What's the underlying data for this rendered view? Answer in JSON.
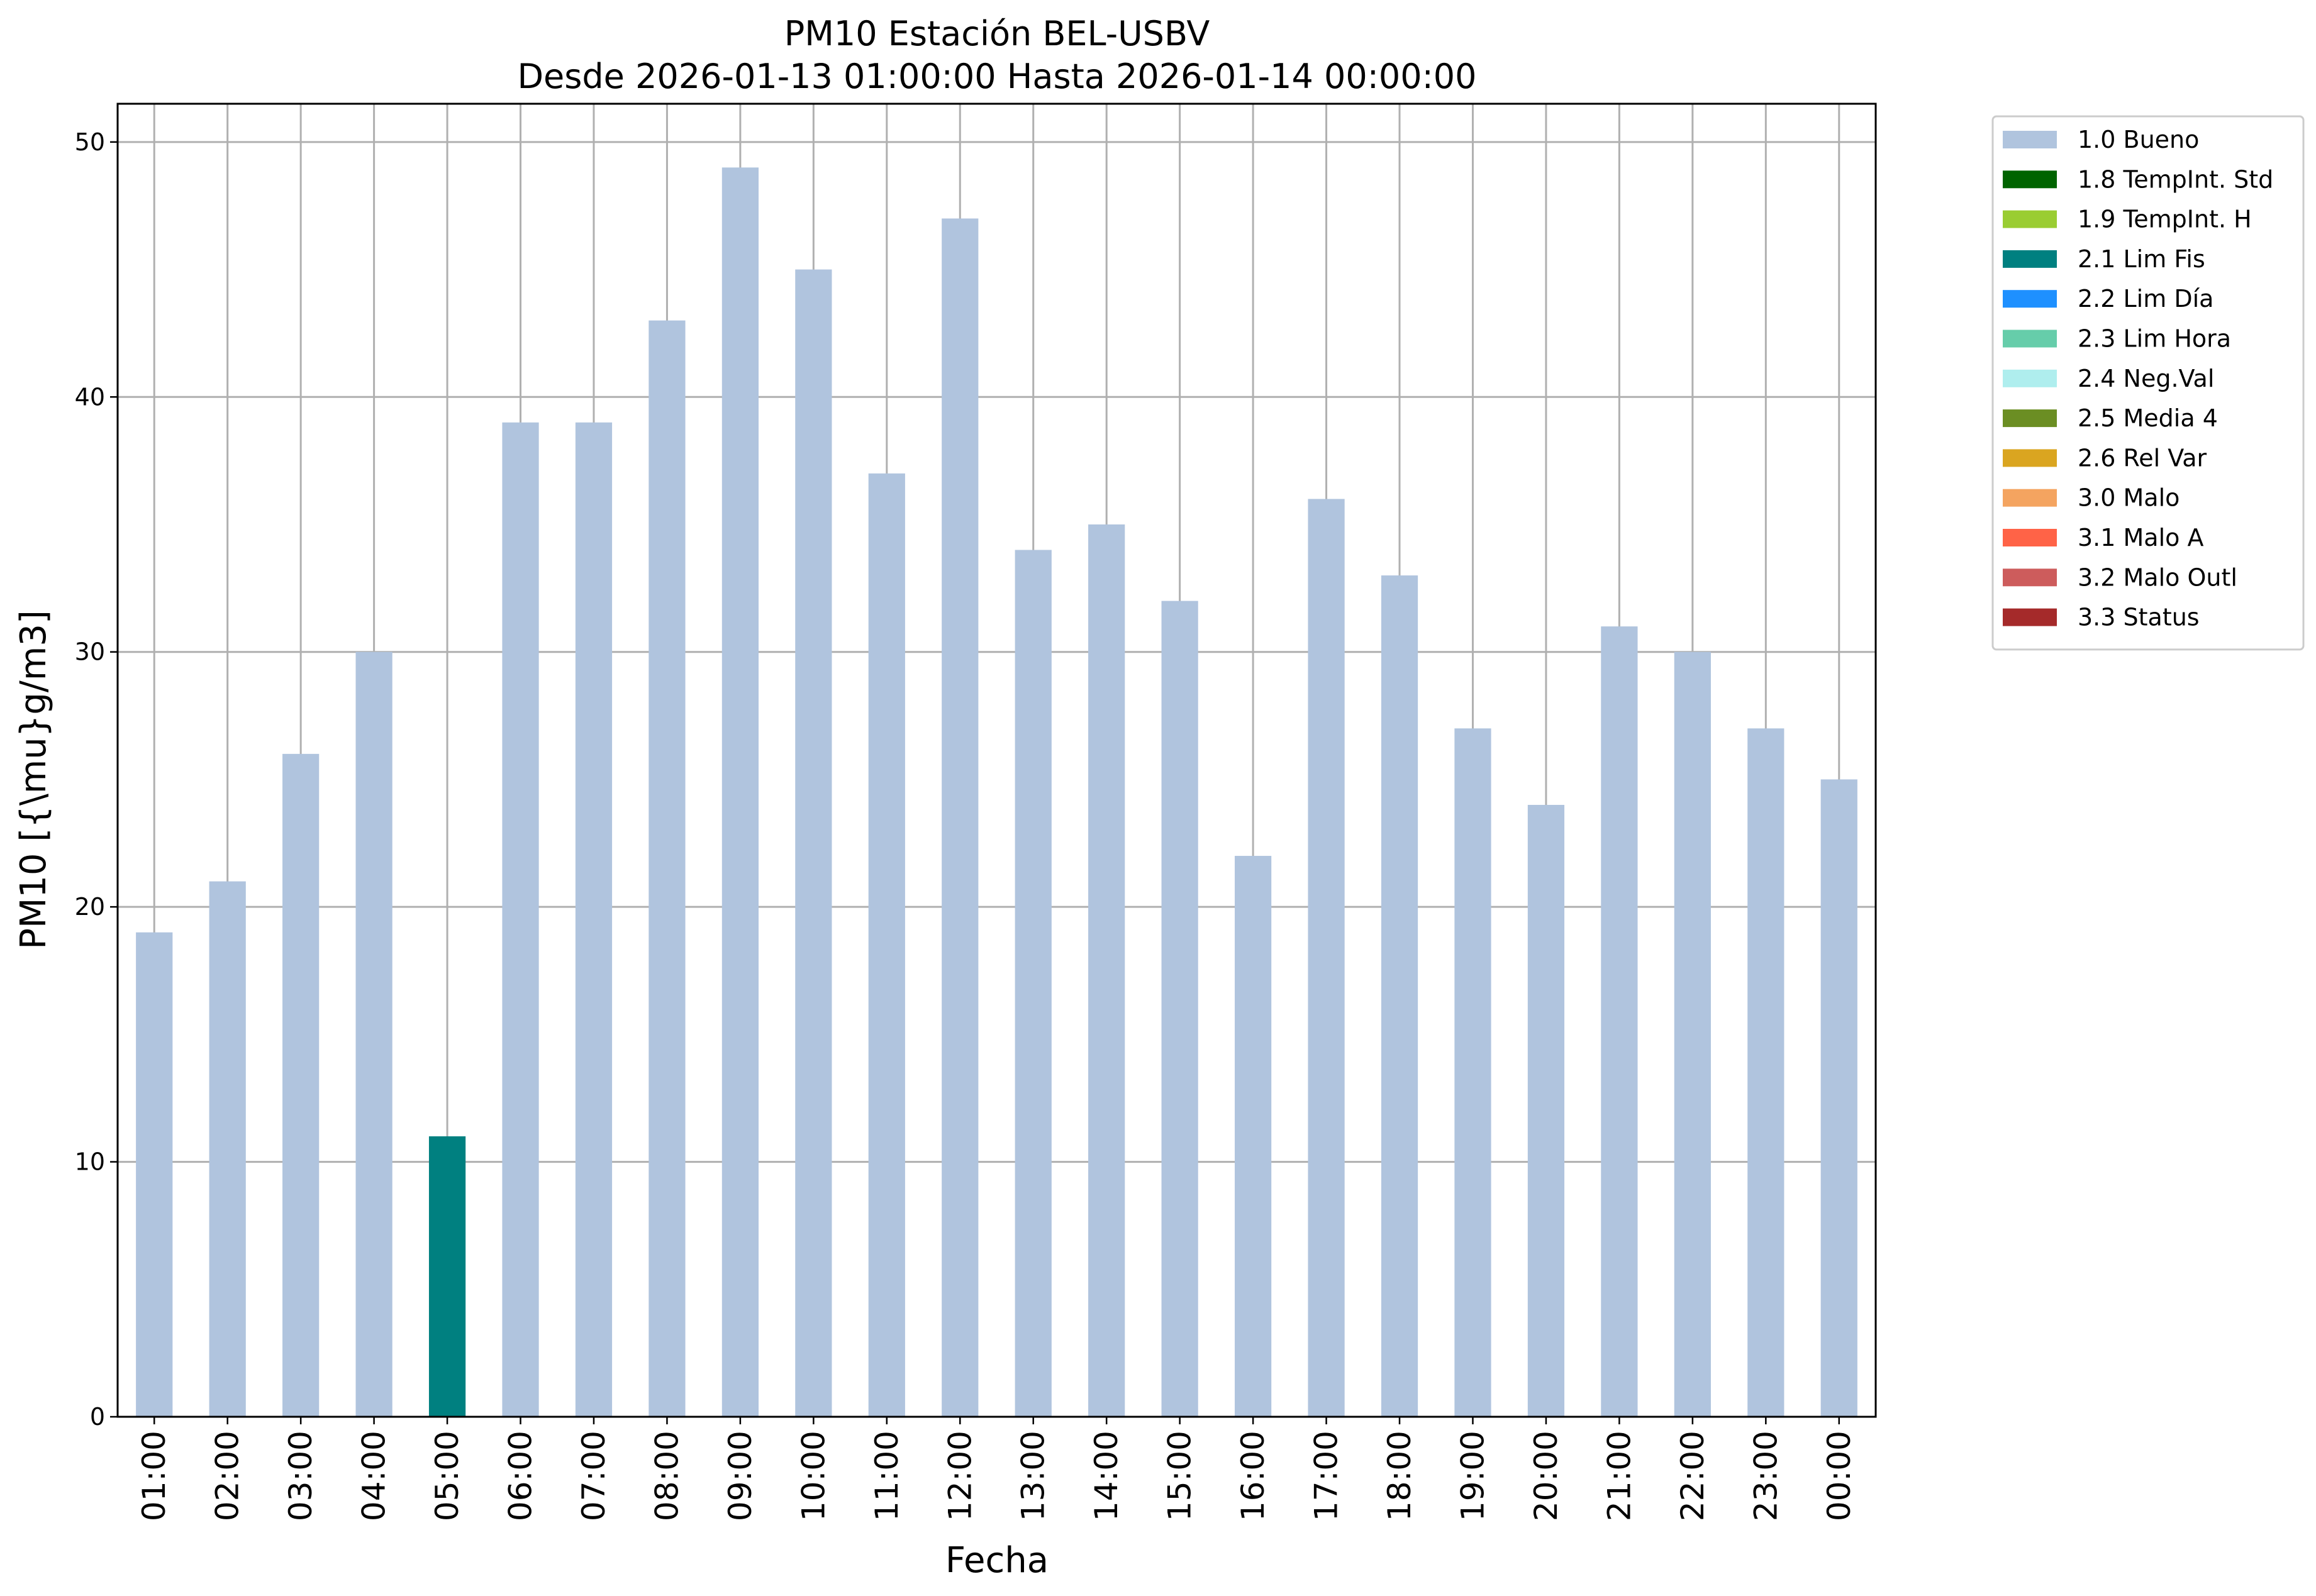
{
  "chart_data": {
    "type": "bar",
    "title": "PM10 Estación BEL-USBV",
    "subtitle": "Desde 2026-01-13 01:00:00 Hasta 2026-01-14 00:00:00",
    "xlabel": "Fecha",
    "ylabel": "PM10 [{\\mu}g/m3]",
    "ylim": [
      0,
      51.5
    ],
    "yticks": [
      0,
      10,
      20,
      30,
      40,
      50
    ],
    "grid": true,
    "legend_position": "outside-top-right",
    "categories": [
      "01:00",
      "02:00",
      "03:00",
      "04:00",
      "05:00",
      "06:00",
      "07:00",
      "08:00",
      "09:00",
      "10:00",
      "11:00",
      "12:00",
      "13:00",
      "14:00",
      "15:00",
      "16:00",
      "17:00",
      "18:00",
      "19:00",
      "20:00",
      "21:00",
      "22:00",
      "23:00",
      "00:00"
    ],
    "values": [
      19,
      21,
      26,
      30,
      11,
      39,
      39,
      43,
      49,
      45,
      37,
      47,
      34,
      35,
      32,
      22,
      36,
      33,
      27,
      24,
      31,
      30,
      27,
      25
    ],
    "flags": [
      "1.0 Bueno",
      "1.0 Bueno",
      "1.0 Bueno",
      "1.0 Bueno",
      "2.1 Lim Fis",
      "1.0 Bueno",
      "1.0 Bueno",
      "1.0 Bueno",
      "1.0 Bueno",
      "1.0 Bueno",
      "1.0 Bueno",
      "1.0 Bueno",
      "1.0 Bueno",
      "1.0 Bueno",
      "1.0 Bueno",
      "1.0 Bueno",
      "1.0 Bueno",
      "1.0 Bueno",
      "1.0 Bueno",
      "1.0 Bueno",
      "1.0 Bueno",
      "1.0 Bueno",
      "1.0 Bueno",
      "1.0 Bueno"
    ],
    "legend": [
      {
        "name": "1.0 Bueno",
        "color": "#b0c4de"
      },
      {
        "name": "1.8 TempInt. Std",
        "color": "#006400"
      },
      {
        "name": "1.9 TempInt. H",
        "color": "#9acd32"
      },
      {
        "name": "2.1 Lim Fis",
        "color": "#008080"
      },
      {
        "name": "2.2 Lim Día",
        "color": "#1e90ff"
      },
      {
        "name": "2.3 Lim Hora",
        "color": "#66cdaa"
      },
      {
        "name": "2.4 Neg.Val",
        "color": "#afeeee"
      },
      {
        "name": "2.5 Media 4",
        "color": "#6b8e23"
      },
      {
        "name": "2.6 Rel Var",
        "color": "#daa520"
      },
      {
        "name": "3.0 Malo",
        "color": "#f4a460"
      },
      {
        "name": "3.1 Malo A",
        "color": "#ff6347"
      },
      {
        "name": "3.2 Malo Outl",
        "color": "#cd5c5c"
      },
      {
        "name": "3.3 Status",
        "color": "#a52a2a"
      }
    ]
  }
}
